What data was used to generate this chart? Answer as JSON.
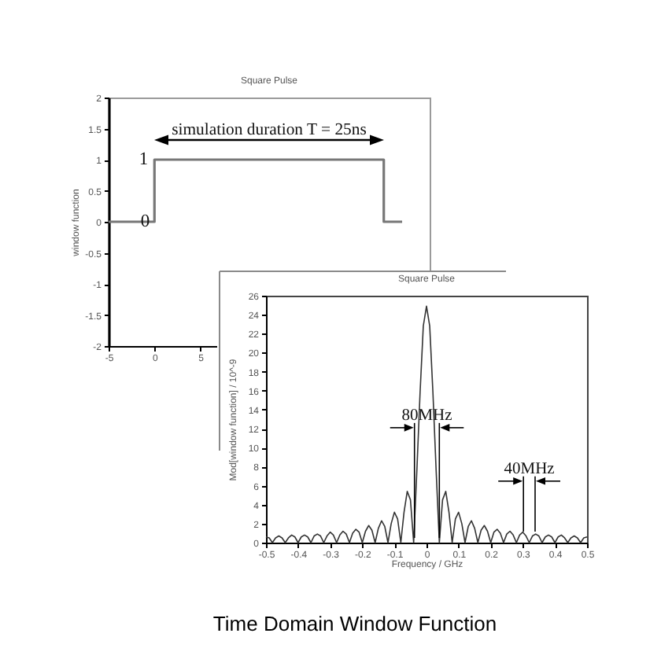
{
  "chart_data": [
    {
      "type": "line",
      "title": "Square Pulse",
      "ylabel": "window function",
      "x": [
        -5,
        0,
        0,
        25,
        25,
        27
      ],
      "values": [
        0,
        0,
        1,
        1,
        0,
        0
      ],
      "color": "#777777",
      "xlim": [
        -5,
        30
      ],
      "xticks": [
        -5,
        0,
        5
      ],
      "ylim": [
        -2,
        2
      ],
      "yticks": [
        -2,
        -1.5,
        -1,
        -0.5,
        0,
        0.5,
        1,
        1.5,
        2
      ],
      "annotations": [
        "simulation duration T = 25ns",
        "1",
        "0"
      ]
    },
    {
      "type": "line",
      "title": "Square Pulse",
      "xlabel": "Frequency / GHz",
      "ylabel": "Mod[window function] / 10^-9",
      "x": [
        -0.5,
        -0.49,
        -0.48,
        -0.47,
        -0.46,
        -0.45,
        -0.44,
        -0.43,
        -0.42,
        -0.41,
        -0.4,
        -0.39,
        -0.38,
        -0.37,
        -0.36,
        -0.35,
        -0.34,
        -0.33,
        -0.32,
        -0.31,
        -0.3,
        -0.29,
        -0.28,
        -0.27,
        -0.26,
        -0.25,
        -0.24,
        -0.23,
        -0.22,
        -0.21,
        -0.2,
        -0.19,
        -0.18,
        -0.17,
        -0.16,
        -0.15,
        -0.14,
        -0.13,
        -0.12,
        -0.11,
        -0.1,
        -0.09,
        -0.08,
        -0.07,
        -0.06,
        -0.05,
        -0.04,
        -0.03,
        -0.02,
        -0.01,
        0,
        0.01,
        0.02,
        0.03,
        0.04,
        0.05,
        0.06,
        0.07,
        0.08,
        0.09,
        0.1,
        0.11,
        0.12,
        0.13,
        0.14,
        0.15,
        0.16,
        0.17,
        0.18,
        0.19,
        0.2,
        0.21,
        0.22,
        0.23,
        0.24,
        0.25,
        0.26,
        0.27,
        0.28,
        0.29,
        0.3,
        0.31,
        0.32,
        0.33,
        0.34,
        0.35,
        0.36,
        0.37,
        0.38,
        0.39,
        0.4,
        0.41,
        0.42,
        0.43,
        0.44,
        0.45,
        0.46,
        0.47,
        0.48,
        0.49,
        0.5
      ],
      "values": [
        0.6,
        0.5,
        0,
        0.5,
        0.7,
        0.5,
        0,
        0.5,
        0.8,
        0.6,
        0,
        0.6,
        0.8,
        0.6,
        0,
        0.7,
        0.9,
        0.7,
        0,
        0.7,
        1.1,
        0.8,
        0,
        0.8,
        1.2,
        0.9,
        0,
        1.0,
        1.4,
        1.1,
        0,
        1.2,
        1.8,
        1.3,
        0,
        1.5,
        2.3,
        1.7,
        0,
        2.0,
        3.2,
        2.5,
        0,
        3.2,
        5.4,
        4.5,
        0,
        7.6,
        15.8,
        22.8,
        24.9,
        22.8,
        15.8,
        7.6,
        0,
        4.5,
        5.4,
        3.2,
        0,
        2.5,
        3.2,
        2.0,
        0,
        1.7,
        2.3,
        1.5,
        0,
        1.3,
        1.8,
        1.2,
        0,
        1.1,
        1.4,
        1.0,
        0,
        0.9,
        1.2,
        0.8,
        0,
        0.8,
        1.1,
        0.7,
        0,
        0.7,
        0.9,
        0.7,
        0,
        0.6,
        0.8,
        0.6,
        0,
        0.6,
        0.8,
        0.5,
        0,
        0.5,
        0.7,
        0.5,
        0,
        0.5,
        0.6
      ],
      "color": "#333333",
      "xlim": [
        -0.5,
        0.5
      ],
      "xticks": [
        -0.5,
        -0.4,
        -0.3,
        -0.2,
        -0.1,
        0,
        0.1,
        0.2,
        0.3,
        0.4,
        0.5
      ],
      "ylim": [
        0,
        26
      ],
      "yticks": [
        0,
        2,
        4,
        6,
        8,
        10,
        12,
        14,
        16,
        18,
        20,
        22,
        24,
        26
      ],
      "annotations": [
        {
          "text": "80MHz",
          "x": 0.04,
          "y": 12.1
        },
        "40MHz",
        "Time Domain Window Function"
      ]
    }
  ]
}
